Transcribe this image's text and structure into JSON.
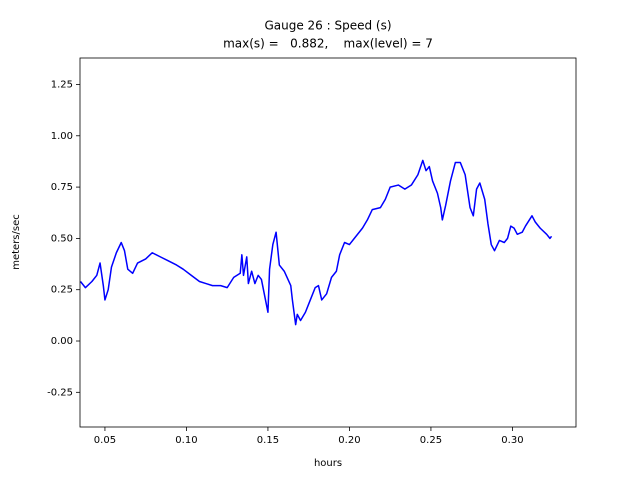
{
  "chart_data": {
    "type": "line",
    "title": "Gauge 26 : Speed (s)",
    "subtitle": "max(s) =   0.882,    max(level) = 7",
    "x_label": "hours",
    "y_label": "meters/sec",
    "xlim": [
      0.0347,
      0.339
    ],
    "ylim": [
      -0.419,
      1.379
    ],
    "xticks": [
      0.05,
      {
        "value": 0.1,
        "label": "0.10"
      },
      0.15,
      {
        "value": 0.2,
        "label": "0.20"
      },
      0.25,
      {
        "value": 0.3,
        "label": "0.30"
      }
    ],
    "yticks": [
      -0.25,
      {
        "value": 0,
        "label": "0.00"
      },
      0.25,
      {
        "value": 0.5,
        "label": "0.50"
      },
      0.75,
      {
        "value": 1,
        "label": "1.00"
      },
      1.25
    ],
    "grid": false,
    "series": [
      {
        "color": "#0000ff",
        "x": [
          0.035,
          0.038,
          0.042,
          0.045,
          0.047,
          0.049,
          0.05,
          0.052,
          0.054,
          0.057,
          0.06,
          0.062,
          0.064,
          0.067,
          0.07,
          0.075,
          0.079,
          0.084,
          0.089,
          0.094,
          0.098,
          0.103,
          0.108,
          0.112,
          0.116,
          0.121,
          0.125,
          0.129,
          0.133,
          0.134,
          0.135,
          0.137,
          0.138,
          0.14,
          0.142,
          0.144,
          0.146,
          0.149,
          0.15,
          0.151,
          0.153,
          0.155,
          0.157,
          0.16,
          0.164,
          0.165,
          0.167,
          0.168,
          0.17,
          0.173,
          0.176,
          0.179,
          0.181,
          0.183,
          0.186,
          0.189,
          0.192,
          0.194,
          0.197,
          0.2,
          0.203,
          0.208,
          0.211,
          0.214,
          0.219,
          0.222,
          0.225,
          0.23,
          0.234,
          0.238,
          0.242,
          0.245,
          0.247,
          0.249,
          0.251,
          0.254,
          0.256,
          0.257,
          0.259,
          0.262,
          0.265,
          0.268,
          0.271,
          0.274,
          0.276,
          0.278,
          0.28,
          0.283,
          0.285,
          0.287,
          0.289,
          0.292,
          0.295,
          0.297,
          0.299,
          0.301,
          0.303,
          0.306,
          0.308,
          0.312,
          0.314,
          0.317,
          0.321,
          0.323,
          0.324
        ],
        "values": [
          0.29,
          0.26,
          0.29,
          0.32,
          0.38,
          0.27,
          0.2,
          0.25,
          0.36,
          0.43,
          0.48,
          0.44,
          0.35,
          0.33,
          0.38,
          0.4,
          0.43,
          0.41,
          0.39,
          0.37,
          0.35,
          0.32,
          0.29,
          0.28,
          0.27,
          0.27,
          0.26,
          0.31,
          0.33,
          0.42,
          0.32,
          0.41,
          0.28,
          0.34,
          0.28,
          0.32,
          0.3,
          0.18,
          0.14,
          0.35,
          0.47,
          0.53,
          0.37,
          0.34,
          0.27,
          0.2,
          0.08,
          0.13,
          0.1,
          0.14,
          0.2,
          0.26,
          0.27,
          0.2,
          0.23,
          0.31,
          0.34,
          0.42,
          0.48,
          0.47,
          0.5,
          0.55,
          0.59,
          0.64,
          0.65,
          0.69,
          0.75,
          0.76,
          0.74,
          0.76,
          0.81,
          0.88,
          0.83,
          0.85,
          0.78,
          0.72,
          0.65,
          0.59,
          0.66,
          0.78,
          0.87,
          0.87,
          0.81,
          0.65,
          0.61,
          0.74,
          0.77,
          0.69,
          0.57,
          0.47,
          0.44,
          0.49,
          0.48,
          0.5,
          0.56,
          0.55,
          0.52,
          0.53,
          0.56,
          0.61,
          0.58,
          0.55,
          0.52,
          0.5,
          0.51
        ]
      }
    ]
  }
}
